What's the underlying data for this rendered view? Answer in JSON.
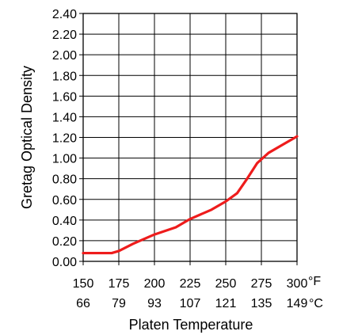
{
  "chart_data": {
    "type": "line",
    "xlabel": "Platen Temperature",
    "ylabel": "Gretag Optical Density",
    "x_unit_primary": "°F",
    "x_unit_secondary": "°C",
    "xlim": [
      150,
      300
    ],
    "ylim": [
      0,
      2.4
    ],
    "grid": true,
    "x_ticks_f": [
      "150",
      "175",
      "200",
      "225",
      "250",
      "275",
      "300"
    ],
    "x_ticks_c": [
      "66",
      "79",
      "93",
      "107",
      "121",
      "135",
      "149"
    ],
    "y_ticks": [
      "0.00",
      "0.20",
      "0.40",
      "0.60",
      "0.80",
      "1.00",
      "1.20",
      "1.40",
      "1.60",
      "1.80",
      "2.00",
      "2.20",
      "2.40"
    ],
    "series": [
      {
        "color": "#ee1c1c",
        "x": [
          150,
          160,
          170,
          175,
          185,
          200,
          215,
          225,
          240,
          250,
          258,
          265,
          272,
          280,
          290,
          300
        ],
        "y": [
          0.08,
          0.08,
          0.08,
          0.1,
          0.17,
          0.26,
          0.33,
          0.41,
          0.5,
          0.58,
          0.66,
          0.8,
          0.95,
          1.05,
          1.13,
          1.21
        ]
      }
    ]
  }
}
